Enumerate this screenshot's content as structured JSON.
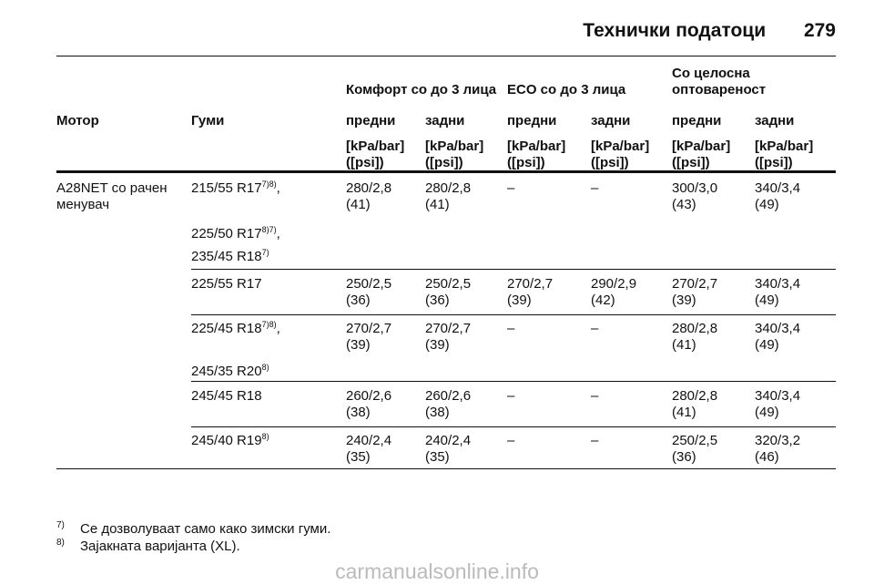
{
  "header": {
    "title": "Технички податоци",
    "page": "279"
  },
  "table": {
    "groups": [
      "Комфорт со до 3 лица",
      "ECO со до 3 лица",
      "Со целосна оптовареност"
    ],
    "columns": [
      "Мотор",
      "Гуми",
      "предни",
      "задни",
      "предни",
      "задни",
      "предни",
      "задни"
    ],
    "units": [
      "[kPa/bar] ([psi])",
      "[kPa/bar] ([psi])",
      "[kPa/bar] ([psi])",
      "[kPa/bar] ([psi])",
      "[kPa/bar] ([psi])",
      "[kPa/bar] ([psi])"
    ],
    "rows": [
      {
        "motor": "A28NET со рачен менувач",
        "tyres": [
          {
            "text": "215/55 R17",
            "sup": "7)8)",
            "suffix": ","
          },
          {
            "text": "225/50 R17",
            "sup": "8)7)",
            "suffix": ","
          },
          {
            "text": "235/45 R18",
            "sup": "7)"
          }
        ],
        "values": [
          [
            "280/2,8",
            "(41)"
          ],
          [
            "280/2,8",
            "(41)"
          ],
          "–",
          "–",
          [
            "300/3,0",
            "(43)"
          ],
          [
            "340/3,4",
            "(49)"
          ]
        ]
      },
      {
        "tyres": [
          {
            "text": "225/55 R17"
          }
        ],
        "values": [
          [
            "250/2,5",
            "(36)"
          ],
          [
            "250/2,5",
            "(36)"
          ],
          [
            "270/2,7",
            "(39)"
          ],
          [
            "290/2,9",
            "(42)"
          ],
          [
            "270/2,7",
            "(39)"
          ],
          [
            "340/3,4",
            "(49)"
          ]
        ]
      },
      {
        "tyres": [
          {
            "text": "225/45 R18",
            "sup": "7)8)",
            "suffix": ","
          },
          {
            "text": "245/35 R20",
            "sup": "8)"
          }
        ],
        "values": [
          [
            "270/2,7",
            "(39)"
          ],
          [
            "270/2,7",
            "(39)"
          ],
          "–",
          "–",
          [
            "280/2,8",
            "(41)"
          ],
          [
            "340/3,4",
            "(49)"
          ]
        ]
      },
      {
        "tyres": [
          {
            "text": "245/45 R18"
          }
        ],
        "values": [
          [
            "260/2,6",
            "(38)"
          ],
          [
            "260/2,6",
            "(38)"
          ],
          "–",
          "–",
          [
            "280/2,8",
            "(41)"
          ],
          [
            "340/3,4",
            "(49)"
          ]
        ]
      },
      {
        "tyres": [
          {
            "text": "245/40 R19",
            "sup": "8)"
          }
        ],
        "values": [
          [
            "240/2,4",
            "(35)"
          ],
          [
            "240/2,4",
            "(35)"
          ],
          "–",
          "–",
          [
            "250/2,5",
            "(36)"
          ],
          [
            "320/3,2",
            "(46)"
          ]
        ]
      }
    ]
  },
  "footnotes": [
    {
      "mark": "7)",
      "text": "Се дозволуваат само како зимски гуми."
    },
    {
      "mark": "8)",
      "text": "Зајакната варијанта (XL)."
    }
  ],
  "watermark": "carmanualsonline.info"
}
